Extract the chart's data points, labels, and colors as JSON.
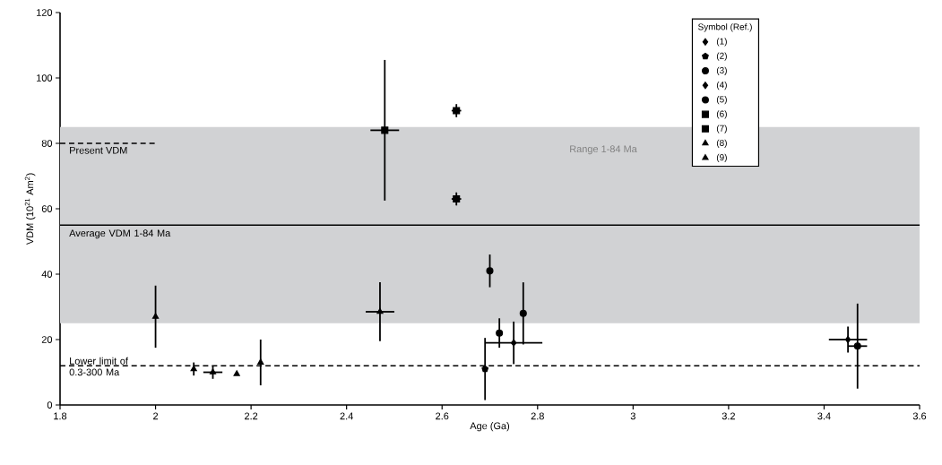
{
  "chart_data": {
    "type": "scatter",
    "xlabel": "Age (Ga)",
    "ylabel": "VDM (10$^{21}$ Am$^{2}$)",
    "legend_title": "Symbol (Ref.)",
    "legend": "top right",
    "grid": false,
    "xlim": [
      1.8,
      3.6
    ],
    "xticks": [
      1.8,
      2,
      2.2,
      2.4,
      2.6,
      2.8,
      3,
      3.2,
      3.4,
      3.6
    ],
    "ylim": [
      0,
      120
    ],
    "yticks": [
      0,
      20,
      40,
      60,
      80,
      100,
      120
    ],
    "series": [
      {
        "name": "(1)",
        "color": "#000000",
        "marker": "diamond",
        "x": [
          3.45
        ],
        "values": [
          20
        ],
        "errors": [
          4
        ],
        "xerrors": [
          0.04
        ]
      },
      {
        "name": "(2)",
        "color": "#000000",
        "x": [
          2.69
        ],
        "values": [
          11
        ],
        "errors": [
          9.5
        ],
        "xerrors": [
          null
        ]
      },
      {
        "name": "(3)",
        "color": "#000000",
        "marker": "circle",
        "x": [
          2.72,
          2.77,
          3.47
        ],
        "values": [
          22,
          28,
          18
        ],
        "errors": [
          4.5,
          9.5,
          13
        ],
        "xerrors": [
          null,
          null,
          0.02
        ]
      },
      {
        "name": "(4)",
        "color": "#000000",
        "marker": "diamond",
        "x": [
          2.75
        ],
        "values": [
          19
        ],
        "errors": [
          6.5
        ],
        "xerrors": [
          0.06
        ]
      },
      {
        "name": "(5)",
        "color": "#000000",
        "marker": "circle",
        "x": [
          2.7
        ],
        "values": [
          41
        ],
        "errors": [
          5
        ],
        "xerrors": [
          null
        ]
      },
      {
        "name": "(6)",
        "color": "#000000",
        "marker": "square",
        "x": [
          2.63,
          2.63
        ],
        "values": [
          90,
          63
        ],
        "errors": [
          2,
          2
        ],
        "xerrors": [
          0.01,
          0.01
        ]
      },
      {
        "name": "(7)",
        "color": "#000000",
        "marker": "square",
        "x": [
          2.48
        ],
        "values": [
          84
        ],
        "errors": [
          21.5
        ],
        "xerrors": [
          0.03
        ]
      },
      {
        "name": "(8)",
        "color": "#000000",
        "marker": "triangle",
        "x": [
          2.08,
          2.12,
          2.17,
          2.22,
          2.47
        ],
        "values": [
          11,
          10,
          9.5,
          13,
          28.5
        ],
        "errors": [
          2,
          2,
          null,
          7,
          9
        ],
        "xerrors": [
          null,
          0.02,
          null,
          null,
          0.03
        ]
      },
      {
        "name": "(9)",
        "color": "#000000",
        "marker": "triangle",
        "x": [
          2.0
        ],
        "values": [
          27
        ],
        "errors": [
          9.5
        ],
        "xerrors": [
          null
        ]
      },
      {
        "type": "line",
        "color": "#000000",
        "line_style": "dashed",
        "marker": "none",
        "x": [
          1.8,
          2.0
        ],
        "values": [
          80,
          80
        ]
      }
    ],
    "ref_lines": [
      {
        "axis": "y",
        "value": 55,
        "label": "Average VDM 1-84 Ma",
        "color": "#000000",
        "line_style": "solid"
      },
      {
        "axis": "y",
        "value": 12,
        "label": "Lower limit of 0.3-300 Ma",
        "color": "#000000",
        "line_style": "dashed"
      }
    ],
    "bands": [
      {
        "axis": "y",
        "from": 25,
        "to": 85,
        "label": "Range 1-84 Ma",
        "color": "#d1d2d4"
      }
    ],
    "annotations": [
      {
        "text": "Present VDM",
        "x": 1.8,
        "y": 80
      }
    ]
  }
}
